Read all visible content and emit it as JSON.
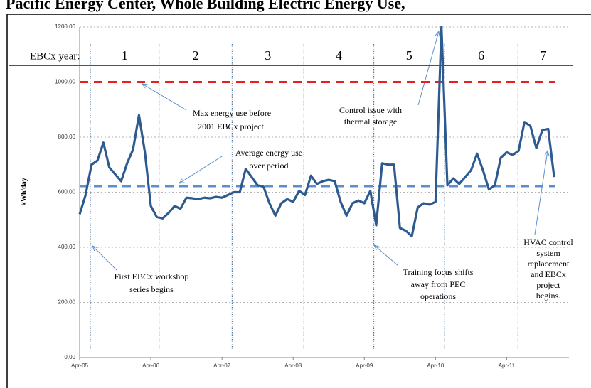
{
  "chart_data": {
    "type": "line",
    "title": "Pacific Energy Center, Whole Building Electric Energy Use,",
    "y_label": "kWh/day",
    "period_label": "EBCx year:",
    "x": [
      0,
      1,
      2,
      3,
      4,
      5,
      6,
      7,
      8,
      9,
      10,
      11,
      12,
      13,
      14,
      15,
      16,
      17,
      18,
      19,
      20,
      21,
      22,
      23,
      24,
      25,
      26,
      27,
      28,
      29,
      30,
      31,
      32,
      33,
      34,
      35,
      36,
      37,
      38,
      39,
      40,
      41,
      42,
      43,
      44,
      45,
      46,
      47,
      48,
      49,
      50,
      51,
      52,
      53,
      54,
      55,
      56,
      57,
      58,
      59,
      60,
      61,
      62,
      63,
      64,
      65,
      66,
      67,
      68,
      69,
      70,
      71,
      72,
      73,
      74,
      75,
      76,
      77,
      78,
      79,
      80
    ],
    "series": [
      {
        "name": "kWh/day",
        "color": "#2e5b8f",
        "values": [
          520,
          590,
          700,
          715,
          780,
          690,
          665,
          640,
          705,
          755,
          880,
          745,
          550,
          510,
          505,
          525,
          550,
          540,
          580,
          578,
          575,
          580,
          578,
          583,
          580,
          590,
          600,
          600,
          685,
          655,
          625,
          620,
          560,
          515,
          560,
          575,
          565,
          605,
          590,
          660,
          630,
          640,
          645,
          640,
          565,
          515,
          560,
          570,
          560,
          605,
          480,
          705,
          700,
          700,
          470,
          460,
          440,
          545,
          560,
          555,
          565,
          1200,
          625,
          650,
          630,
          655,
          680,
          740,
          680,
          610,
          625,
          725,
          745,
          735,
          750,
          855,
          840,
          760,
          825,
          830,
          655
        ]
      }
    ],
    "xlim": [
      0,
      82.5
    ],
    "xticks": [
      {
        "value": 0,
        "label": "Apr-05"
      },
      {
        "value": 12,
        "label": "Apr-06"
      },
      {
        "value": 24,
        "label": "Apr-07"
      },
      {
        "value": 36,
        "label": "Apr-08"
      },
      {
        "value": 48,
        "label": "Apr-09"
      },
      {
        "value": 60,
        "label": "Apr-10"
      },
      {
        "value": 72,
        "label": "Apr-11"
      }
    ],
    "ylim": [
      0,
      1200
    ],
    "yticks": [
      {
        "value": 0,
        "label": "0.00"
      },
      {
        "value": 200,
        "label": "200.00"
      },
      {
        "value": 400,
        "label": "400.00"
      },
      {
        "value": 600,
        "label": "600.00"
      },
      {
        "value": 800,
        "label": "800.00"
      },
      {
        "value": 1000,
        "label": "1000.00"
      },
      {
        "value": 1200,
        "label": "1200.00"
      }
    ],
    "grid": true,
    "reference_lines": [
      {
        "value": 1000,
        "color": "#e8201c",
        "style": "dashed"
      },
      {
        "value": 622,
        "color": "#5b8fd0",
        "style": "dashed"
      },
      {
        "value": 1060,
        "color": "#2e5b8f",
        "style": "solid"
      }
    ],
    "dividers_x": [
      1.8,
      13.4,
      25.7,
      37.8,
      49.6,
      61.5,
      73.9
    ],
    "periods": [
      "1",
      "2",
      "3",
      "4",
      "5",
      "6",
      "7"
    ],
    "annotations": [
      [
        "Max energy use before",
        "2001 EBCx project."
      ],
      [
        "Average energy use",
        "over period"
      ],
      [
        "Control issue with",
        "thermal storage"
      ],
      [
        "First EBCx workshop",
        "series begins"
      ],
      [
        "Training focus shifts",
        "away from PEC",
        "operations"
      ],
      [
        "HVAC control",
        "system",
        "replacement",
        "and EBCx",
        "project",
        "begins."
      ]
    ]
  }
}
